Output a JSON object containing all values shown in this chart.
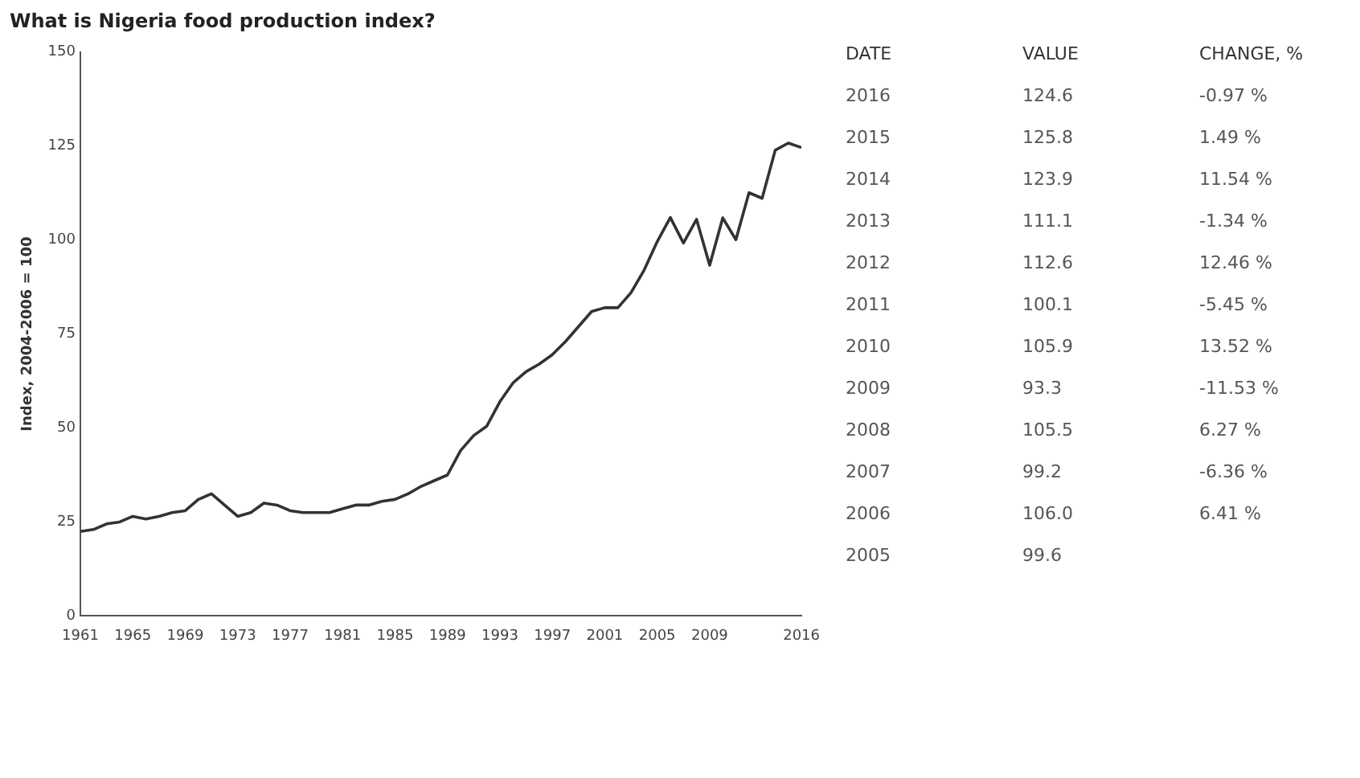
{
  "chart_data": {
    "type": "line",
    "title": "What is Nigeria food production index?",
    "ylabel": "Index, 2004-2006 = 100",
    "x": [
      1961,
      1962,
      1963,
      1964,
      1965,
      1966,
      1967,
      1968,
      1969,
      1970,
      1971,
      1972,
      1973,
      1974,
      1975,
      1976,
      1977,
      1978,
      1979,
      1980,
      1981,
      1982,
      1983,
      1984,
      1985,
      1986,
      1987,
      1988,
      1989,
      1990,
      1991,
      1992,
      1993,
      1994,
      1995,
      1996,
      1997,
      1998,
      1999,
      2000,
      2001,
      2002,
      2003,
      2004,
      2005,
      2006,
      2007,
      2008,
      2009,
      2010,
      2011,
      2012,
      2013,
      2014,
      2015,
      2016
    ],
    "series": [
      {
        "color": "#333333",
        "values": [
          22.5,
          23,
          24.5,
          25,
          26.5,
          25.8,
          26.5,
          27.5,
          28,
          31,
          32.5,
          29.5,
          26.5,
          27.5,
          30,
          29.5,
          28,
          27.5,
          27.5,
          27.5,
          28.5,
          29.5,
          29.5,
          30.5,
          31,
          32.5,
          34.5,
          36,
          37.5,
          44,
          48,
          50.5,
          57,
          62,
          65,
          67,
          69.5,
          73,
          77,
          81,
          82,
          82,
          86,
          92,
          99.6,
          106.0,
          99.2,
          105.5,
          93.3,
          105.9,
          100.1,
          112.6,
          111.1,
          123.9,
          125.8,
          124.6
        ]
      }
    ],
    "xlim": [
      1961,
      2016
    ],
    "xticks": [
      1961,
      1965,
      1969,
      1973,
      1977,
      1981,
      1985,
      1989,
      1993,
      1997,
      2001,
      2005,
      2009,
      2016
    ],
    "ylim": [
      0,
      150
    ],
    "yticks": [
      0,
      25,
      50,
      75,
      100,
      125,
      150
    ],
    "grid": false,
    "legend": false,
    "marker": "none",
    "line_style": "solid",
    "annotations": [
      "DATE",
      "VALUE",
      "CHANGE, %",
      "2016",
      "124.6",
      "-0.97 %",
      "2015",
      "125.8",
      "1.49 %",
      "2014",
      "123.9",
      "11.54 %",
      "2013",
      "111.1",
      "-1.34 %",
      "2012",
      "112.6",
      "12.46 %",
      "2011",
      "100.1",
      "-5.45 %",
      "2010",
      "105.9",
      "13.52 %",
      "2009",
      "93.3",
      "-11.53 %",
      "2008",
      "105.5",
      "6.27 %",
      "2007",
      "99.2",
      "-6.36 %",
      "2006",
      "106.0",
      "6.41 %",
      "2005",
      "99.6"
    ]
  }
}
